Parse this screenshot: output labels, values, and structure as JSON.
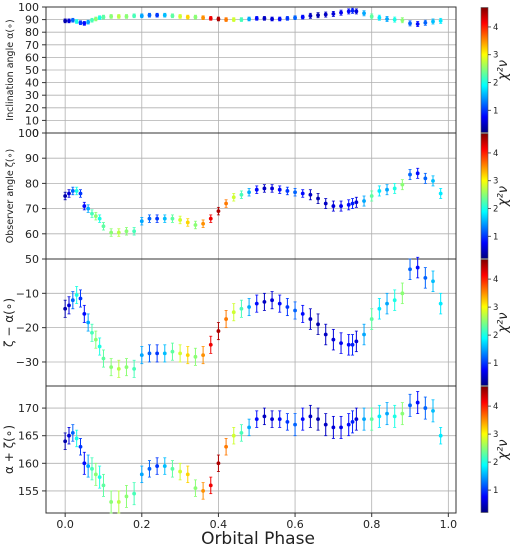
{
  "figure": {
    "xlabel": "Orbital Phase",
    "x_ticks": [
      "0.0",
      "0.2",
      "0.4",
      "0.6",
      "0.8",
      "1.0"
    ],
    "colorbar": {
      "label": "χ²ν",
      "ticks": [
        "1",
        "2",
        "3",
        "4"
      ],
      "range": [
        0.2,
        4.7
      ],
      "colormap": "jet",
      "colors": [
        "#00007f",
        "#0000ff",
        "#007fff",
        "#00ffff",
        "#7fff7f",
        "#ffff00",
        "#ff7f00",
        "#ff0000",
        "#7f0000"
      ]
    }
  },
  "chart_data": [
    {
      "type": "scatter",
      "ylabel": "Inclination angle α(∘)",
      "ylim": [
        0,
        100
      ],
      "y_ticks": [
        "0",
        "10",
        "20",
        "30",
        "40",
        "50",
        "60",
        "70",
        "80",
        "90",
        "100"
      ],
      "xlim": [
        -0.05,
        1.02
      ],
      "grid": true,
      "x": [
        0.0,
        0.01,
        0.02,
        0.03,
        0.04,
        0.05,
        0.06,
        0.07,
        0.08,
        0.09,
        0.1,
        0.12,
        0.14,
        0.16,
        0.18,
        0.2,
        0.22,
        0.24,
        0.26,
        0.28,
        0.3,
        0.32,
        0.34,
        0.36,
        0.38,
        0.4,
        0.42,
        0.44,
        0.46,
        0.48,
        0.5,
        0.52,
        0.54,
        0.56,
        0.58,
        0.6,
        0.62,
        0.64,
        0.66,
        0.68,
        0.7,
        0.72,
        0.74,
        0.75,
        0.76,
        0.78,
        0.8,
        0.82,
        0.84,
        0.86,
        0.88,
        0.9,
        0.92,
        0.94,
        0.96,
        0.98
      ],
      "y": [
        89,
        89,
        89.5,
        88.5,
        87.5,
        87,
        88,
        89.5,
        90.5,
        91.5,
        92,
        92.5,
        92.5,
        92.5,
        93,
        93,
        93.5,
        93.5,
        93.5,
        93,
        92.5,
        92,
        92,
        91.5,
        91,
        90.5,
        90,
        90,
        90,
        90.5,
        91,
        91,
        90.5,
        90.5,
        91,
        91.5,
        92,
        93,
        93.5,
        94,
        94.5,
        95.5,
        96.5,
        97,
        96.5,
        95,
        92.5,
        91.5,
        90.5,
        90,
        89.5,
        87,
        86.5,
        87.5,
        88.5,
        89
      ],
      "err": [
        1.5,
        1.5,
        1.5,
        1.5,
        1.5,
        1.5,
        1.5,
        1.5,
        1.5,
        1.5,
        1.5,
        1.5,
        1.5,
        1.5,
        1.5,
        1.5,
        1.5,
        1.5,
        1.5,
        1.5,
        1.5,
        1.5,
        1.5,
        1.5,
        1.5,
        1.5,
        1.5,
        1.5,
        1.5,
        1.5,
        1.5,
        1.5,
        1.5,
        1.5,
        1.5,
        1.5,
        1.5,
        2,
        2,
        2,
        2,
        2,
        2,
        2,
        2,
        2,
        2,
        2,
        2,
        2,
        2,
        2,
        2,
        2,
        2,
        2
      ],
      "chi2": [
        0.4,
        0.6,
        1.2,
        2.0,
        1.0,
        0.8,
        1.5,
        2.2,
        2.5,
        2.0,
        2.3,
        2.5,
        2.7,
        2.5,
        2.2,
        1.5,
        1.2,
        1.0,
        1.6,
        2.3,
        2.8,
        3.2,
        2.5,
        3.5,
        4.2,
        4.5,
        3.6,
        2.8,
        2.2,
        1.5,
        0.8,
        0.5,
        0.6,
        0.8,
        1.0,
        1.2,
        0.8,
        0.5,
        0.4,
        0.5,
        0.6,
        0.7,
        0.8,
        0.9,
        0.6,
        1.5,
        2.3,
        1.8,
        1.5,
        2.0,
        2.5,
        1.2,
        0.8,
        1.2,
        1.6,
        1.8
      ]
    },
    {
      "type": "scatter",
      "ylabel": "Observer angle ζ(∘)",
      "ylim": [
        50,
        100
      ],
      "y_ticks": [
        "50",
        "60",
        "70",
        "80",
        "90",
        "100"
      ],
      "xlim": [
        -0.05,
        1.02
      ],
      "grid": true,
      "x": [
        0.0,
        0.01,
        0.02,
        0.03,
        0.04,
        0.05,
        0.06,
        0.07,
        0.08,
        0.09,
        0.1,
        0.12,
        0.14,
        0.16,
        0.18,
        0.2,
        0.22,
        0.24,
        0.26,
        0.28,
        0.3,
        0.32,
        0.34,
        0.36,
        0.38,
        0.4,
        0.42,
        0.44,
        0.46,
        0.48,
        0.5,
        0.52,
        0.54,
        0.56,
        0.58,
        0.6,
        0.62,
        0.64,
        0.66,
        0.68,
        0.7,
        0.72,
        0.74,
        0.75,
        0.76,
        0.78,
        0.8,
        0.82,
        0.84,
        0.86,
        0.88,
        0.9,
        0.92,
        0.94,
        0.96,
        0.98
      ],
      "y": [
        75,
        76,
        77,
        77,
        76,
        71,
        70,
        68,
        67,
        66,
        63,
        60.5,
        60.5,
        61,
        61,
        65,
        66,
        66,
        66,
        66,
        65.5,
        64.5,
        63.5,
        64,
        66,
        69,
        72,
        74.5,
        75.5,
        76.5,
        77.5,
        78,
        78,
        77.5,
        77,
        76.5,
        76,
        75.5,
        74,
        72,
        71,
        71,
        71.5,
        72,
        72.5,
        73,
        75,
        77,
        77.5,
        78,
        79.5,
        83.5,
        84,
        82,
        81,
        76
      ],
      "err": [
        1.5,
        1.5,
        1.5,
        1.5,
        1.5,
        1.5,
        1.5,
        1.5,
        1.5,
        1.5,
        1.5,
        1.5,
        1.5,
        1.5,
        1.5,
        1.5,
        1.5,
        1.5,
        1.5,
        1.5,
        1.5,
        1.5,
        1.5,
        1.5,
        1.5,
        1.5,
        1.5,
        1.5,
        1.5,
        1.5,
        1.5,
        1.5,
        1.5,
        1.5,
        1.5,
        1.5,
        1.5,
        2,
        2,
        2,
        2,
        2,
        2,
        2,
        2,
        2,
        2,
        2,
        2,
        2,
        2,
        2,
        2,
        2,
        2,
        2
      ],
      "chi2": [
        0.4,
        0.6,
        1.2,
        2.0,
        1.0,
        0.8,
        1.5,
        2.2,
        2.5,
        2.0,
        2.3,
        2.5,
        2.7,
        2.5,
        2.2,
        1.5,
        1.2,
        1.0,
        1.6,
        2.3,
        2.8,
        3.2,
        2.5,
        3.5,
        4.2,
        4.5,
        3.6,
        2.8,
        2.2,
        1.5,
        0.8,
        0.5,
        0.6,
        0.8,
        1.0,
        1.2,
        0.8,
        0.5,
        0.4,
        0.5,
        0.6,
        0.7,
        0.8,
        0.9,
        0.6,
        1.5,
        2.3,
        1.8,
        1.5,
        2.0,
        2.5,
        1.2,
        0.8,
        1.2,
        1.6,
        1.8
      ]
    },
    {
      "type": "scatter",
      "ylabel": "ζ − α(∘)",
      "ylim": [
        -37,
        0
      ],
      "y_ticks": [
        "−30",
        "−20",
        "−10"
      ],
      "y_tick_values": [
        -30,
        -20,
        -10
      ],
      "xlim": [
        -0.05,
        1.02
      ],
      "grid": true,
      "x": [
        0.0,
        0.01,
        0.02,
        0.03,
        0.04,
        0.05,
        0.06,
        0.07,
        0.08,
        0.09,
        0.1,
        0.12,
        0.14,
        0.16,
        0.18,
        0.2,
        0.22,
        0.24,
        0.26,
        0.28,
        0.3,
        0.32,
        0.34,
        0.36,
        0.38,
        0.4,
        0.42,
        0.44,
        0.46,
        0.48,
        0.5,
        0.52,
        0.54,
        0.56,
        0.58,
        0.6,
        0.62,
        0.64,
        0.66,
        0.68,
        0.7,
        0.72,
        0.74,
        0.75,
        0.76,
        0.78,
        0.8,
        0.82,
        0.84,
        0.86,
        0.88,
        0.9,
        0.92,
        0.94,
        0.96,
        0.98
      ],
      "y": [
        -14.5,
        -13.5,
        -12,
        -10.5,
        -11.5,
        -16,
        -18.5,
        -21.5,
        -23.5,
        -25.5,
        -29,
        -31.5,
        -32,
        -31.5,
        -32,
        -28,
        -27.5,
        -27.5,
        -27.5,
        -27,
        -27.5,
        -28,
        -28.5,
        -28,
        -25,
        -21,
        -17.5,
        -15.5,
        -14.5,
        -14,
        -13,
        -12.5,
        -12,
        -13,
        -14,
        -15,
        -16,
        -17.5,
        -19,
        -22,
        -23.5,
        -24.5,
        -25,
        -25,
        -24,
        -22,
        -17.5,
        -14.5,
        -13,
        -12,
        -10,
        -3,
        -2.5,
        -5.5,
        -6.5,
        -13
      ],
      "err": [
        2.5,
        2.5,
        2.5,
        2.5,
        2.5,
        2.5,
        2.5,
        2.5,
        2.5,
        2.5,
        2.5,
        2.5,
        2.5,
        2.5,
        2.5,
        2.5,
        2.5,
        2.5,
        2.5,
        2.5,
        2.5,
        2.5,
        2.5,
        2.5,
        2.5,
        2.5,
        2.5,
        2.5,
        2.5,
        2.5,
        2.5,
        2.5,
        2.5,
        2.5,
        2.5,
        2.5,
        2.5,
        3,
        3,
        3,
        3,
        3,
        3,
        3,
        3,
        3,
        3,
        3,
        3,
        3,
        3,
        3,
        3,
        3,
        3,
        3
      ],
      "chi2": [
        0.4,
        0.6,
        1.2,
        2.0,
        1.0,
        0.8,
        1.5,
        2.2,
        2.5,
        2.0,
        2.3,
        2.5,
        2.7,
        2.5,
        2.2,
        1.5,
        1.2,
        1.0,
        1.6,
        2.3,
        2.8,
        3.2,
        2.5,
        3.5,
        4.2,
        4.5,
        3.6,
        2.8,
        2.2,
        1.5,
        0.8,
        0.5,
        0.6,
        0.8,
        1.0,
        1.2,
        0.8,
        0.5,
        0.4,
        0.5,
        0.6,
        0.7,
        0.8,
        0.9,
        0.6,
        1.5,
        2.3,
        1.8,
        1.5,
        2.0,
        2.5,
        1.2,
        0.8,
        1.2,
        1.6,
        1.8
      ]
    },
    {
      "type": "scatter",
      "ylabel": "α + ζ(∘)",
      "ylim": [
        151,
        174
      ],
      "y_ticks": [
        "155",
        "160",
        "165",
        "170"
      ],
      "y_tick_values": [
        155,
        160,
        165,
        170
      ],
      "xlim": [
        -0.05,
        1.02
      ],
      "grid": true,
      "x": [
        0.0,
        0.01,
        0.02,
        0.03,
        0.04,
        0.05,
        0.06,
        0.07,
        0.08,
        0.09,
        0.1,
        0.12,
        0.14,
        0.16,
        0.18,
        0.2,
        0.22,
        0.24,
        0.26,
        0.28,
        0.3,
        0.32,
        0.34,
        0.36,
        0.38,
        0.4,
        0.42,
        0.44,
        0.46,
        0.48,
        0.5,
        0.52,
        0.54,
        0.56,
        0.58,
        0.6,
        0.62,
        0.64,
        0.66,
        0.68,
        0.7,
        0.72,
        0.74,
        0.75,
        0.76,
        0.78,
        0.8,
        0.82,
        0.84,
        0.86,
        0.88,
        0.9,
        0.92,
        0.94,
        0.96,
        0.98
      ],
      "y": [
        164,
        165,
        165.5,
        164.5,
        163,
        160,
        159.5,
        159,
        158,
        157.5,
        156,
        153,
        153,
        154,
        154.5,
        158,
        159,
        159.5,
        159.5,
        159,
        158.5,
        158,
        155.5,
        155,
        156,
        160,
        163,
        165,
        165.5,
        166.5,
        168,
        168.5,
        168,
        168,
        167.5,
        167,
        168,
        168.5,
        168,
        167,
        166.5,
        166.5,
        167,
        167.5,
        168,
        168,
        168,
        168.5,
        169,
        168.5,
        169,
        170.5,
        171,
        170,
        169.5,
        165
      ],
      "err": [
        1.5,
        1.5,
        1.5,
        1.5,
        1.5,
        2,
        2,
        2,
        2,
        2,
        2,
        2,
        2,
        2,
        2,
        1.5,
        1.5,
        1.5,
        1.5,
        1.5,
        1.5,
        1.5,
        1.5,
        1.5,
        1.5,
        1.5,
        1.5,
        1.5,
        1.5,
        1.5,
        1.5,
        1.5,
        1.5,
        1.5,
        1.5,
        2,
        2,
        2,
        2,
        2,
        2,
        2,
        2,
        2,
        2,
        2,
        2,
        2,
        2,
        2,
        2,
        2,
        2,
        2,
        2,
        1.5
      ],
      "chi2": [
        0.4,
        0.6,
        1.2,
        2.0,
        1.0,
        0.8,
        1.5,
        2.2,
        2.5,
        2.0,
        2.3,
        2.5,
        2.7,
        2.5,
        2.2,
        1.5,
        1.2,
        1.0,
        1.6,
        2.3,
        2.8,
        3.2,
        2.5,
        3.5,
        4.2,
        4.5,
        3.6,
        2.8,
        2.2,
        1.5,
        0.8,
        0.5,
        0.6,
        0.8,
        1.0,
        1.2,
        0.8,
        0.5,
        0.4,
        0.5,
        0.6,
        0.7,
        0.8,
        0.9,
        0.6,
        1.5,
        2.3,
        1.8,
        1.5,
        2.0,
        2.5,
        1.2,
        0.8,
        1.2,
        1.6,
        1.8
      ]
    }
  ]
}
